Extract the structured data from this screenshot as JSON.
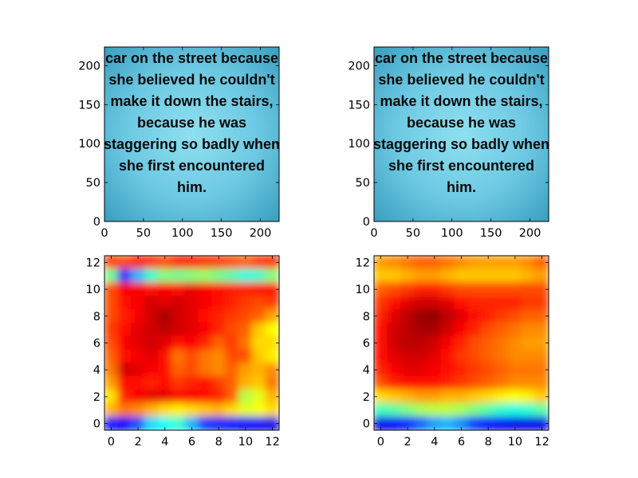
{
  "chart_data": [
    {
      "type": "image",
      "panel": "top-left",
      "xlim": [
        0,
        224
      ],
      "ylim": [
        224,
        0
      ],
      "x_ticks": [
        "0",
        "50",
        "100",
        "150",
        "200"
      ],
      "y_ticks": [
        "0",
        "50",
        "100",
        "150",
        "200"
      ],
      "x_tick_values": [
        0,
        50,
        100,
        150,
        200
      ],
      "y_tick_values": [
        0,
        50,
        100,
        150,
        200
      ],
      "image_text_lines": [
        "car on the street because",
        "she believed he couldn't",
        "make it down the stairs,",
        "because he was",
        "staggering so badly when",
        "she first encountered",
        "him."
      ],
      "background_colors": [
        "#8fe0f0",
        "#3a9fbf"
      ]
    },
    {
      "type": "image",
      "panel": "top-right",
      "xlim": [
        0,
        224
      ],
      "ylim": [
        224,
        0
      ],
      "x_ticks": [
        "0",
        "50",
        "100",
        "150",
        "200"
      ],
      "y_ticks": [
        "0",
        "50",
        "100",
        "150",
        "200"
      ],
      "x_tick_values": [
        0,
        50,
        100,
        150,
        200
      ],
      "y_tick_values": [
        0,
        50,
        100,
        150,
        200
      ],
      "image_text_lines": [
        "car on the street because",
        "she believed he couldn't",
        "make it down the stairs,",
        "because he was",
        "staggering so badly when",
        "she first encountered",
        "him."
      ],
      "bounding_box": {
        "x0": 4,
        "y0": 4,
        "x1": 220,
        "y1": 204,
        "color": "#c8b400"
      }
    },
    {
      "type": "heatmap",
      "panel": "bottom-left",
      "colormap": "jet",
      "xlim": [
        -0.5,
        12.5
      ],
      "ylim": [
        12.5,
        -0.5
      ],
      "x_ticks": [
        "0",
        "2",
        "4",
        "6",
        "8",
        "10",
        "12"
      ],
      "y_ticks": [
        "0",
        "2",
        "4",
        "6",
        "8",
        "10",
        "12"
      ],
      "x_tick_values": [
        0,
        2,
        4,
        6,
        8,
        10,
        12
      ],
      "y_tick_values": [
        0,
        2,
        4,
        6,
        8,
        10,
        12
      ],
      "z": [
        [
          0.82,
          0.8,
          0.85,
          0.83,
          0.8,
          0.85,
          0.85,
          0.83,
          0.82,
          0.8,
          0.78,
          0.82,
          0.83
        ],
        [
          0.48,
          0.18,
          0.3,
          0.42,
          0.5,
          0.48,
          0.5,
          0.52,
          0.48,
          0.45,
          0.4,
          0.42,
          0.5
        ],
        [
          0.8,
          0.88,
          0.88,
          0.86,
          0.88,
          0.86,
          0.9,
          0.88,
          0.86,
          0.85,
          0.84,
          0.86,
          0.86
        ],
        [
          0.8,
          0.86,
          0.88,
          0.92,
          0.9,
          0.92,
          0.9,
          0.88,
          0.86,
          0.84,
          0.82,
          0.8,
          0.82
        ],
        [
          0.8,
          0.85,
          0.88,
          0.92,
          0.96,
          0.92,
          0.9,
          0.86,
          0.84,
          0.82,
          0.8,
          0.78,
          0.72
        ],
        [
          0.82,
          0.86,
          0.9,
          0.92,
          0.94,
          0.92,
          0.9,
          0.88,
          0.84,
          0.8,
          0.78,
          0.68,
          0.62
        ],
        [
          0.8,
          0.88,
          0.9,
          0.92,
          0.9,
          0.86,
          0.88,
          0.84,
          0.78,
          0.82,
          0.76,
          0.66,
          0.66
        ],
        [
          0.78,
          0.86,
          0.88,
          0.9,
          0.86,
          0.76,
          0.8,
          0.76,
          0.74,
          0.8,
          0.8,
          0.68,
          0.64
        ],
        [
          0.76,
          0.92,
          0.9,
          0.88,
          0.86,
          0.78,
          0.8,
          0.76,
          0.74,
          0.78,
          0.72,
          0.7,
          0.74
        ],
        [
          0.72,
          0.86,
          0.86,
          0.84,
          0.86,
          0.82,
          0.84,
          0.86,
          0.82,
          0.78,
          0.7,
          0.68,
          0.76
        ],
        [
          0.65,
          0.84,
          0.88,
          0.9,
          0.9,
          0.88,
          0.88,
          0.86,
          0.84,
          0.78,
          0.55,
          0.6,
          0.7
        ],
        [
          0.7,
          0.76,
          0.74,
          0.7,
          0.66,
          0.64,
          0.66,
          0.68,
          0.7,
          0.66,
          0.6,
          0.62,
          0.66
        ],
        [
          0.14,
          0.12,
          0.2,
          0.34,
          0.38,
          0.42,
          0.3,
          0.18,
          0.16,
          0.14,
          0.12,
          0.12,
          0.1
        ]
      ],
      "bounding_box": {
        "x0": 0,
        "y0": 0,
        "x1": 12,
        "y1": 11,
        "color": "#ffffff"
      }
    },
    {
      "type": "heatmap",
      "panel": "bottom-right",
      "colormap": "jet",
      "xlim": [
        -0.5,
        12.5
      ],
      "ylim": [
        12.5,
        -0.5
      ],
      "x_ticks": [
        "0",
        "2",
        "4",
        "6",
        "8",
        "10",
        "12"
      ],
      "y_ticks": [
        "0",
        "2",
        "4",
        "6",
        "8",
        "10",
        "12"
      ],
      "x_tick_values": [
        0,
        2,
        4,
        6,
        8,
        10,
        12
      ],
      "y_tick_values": [
        0,
        2,
        4,
        6,
        8,
        10,
        12
      ],
      "z": [
        [
          0.72,
          0.74,
          0.76,
          0.78,
          0.78,
          0.76,
          0.74,
          0.72,
          0.72,
          0.72,
          0.72,
          0.74,
          0.78
        ],
        [
          0.68,
          0.68,
          0.7,
          0.72,
          0.72,
          0.7,
          0.68,
          0.68,
          0.68,
          0.68,
          0.68,
          0.7,
          0.72
        ],
        [
          0.78,
          0.8,
          0.82,
          0.84,
          0.84,
          0.82,
          0.8,
          0.8,
          0.8,
          0.8,
          0.8,
          0.8,
          0.8
        ],
        [
          0.82,
          0.86,
          0.9,
          0.92,
          0.92,
          0.9,
          0.86,
          0.84,
          0.84,
          0.84,
          0.84,
          0.82,
          0.82
        ],
        [
          0.84,
          0.9,
          0.94,
          0.97,
          0.98,
          0.94,
          0.9,
          0.86,
          0.84,
          0.82,
          0.8,
          0.78,
          0.78
        ],
        [
          0.86,
          0.92,
          0.94,
          0.96,
          0.96,
          0.92,
          0.88,
          0.84,
          0.8,
          0.78,
          0.76,
          0.74,
          0.74
        ],
        [
          0.86,
          0.92,
          0.94,
          0.94,
          0.92,
          0.88,
          0.84,
          0.8,
          0.78,
          0.76,
          0.74,
          0.72,
          0.72
        ],
        [
          0.86,
          0.9,
          0.92,
          0.92,
          0.9,
          0.86,
          0.82,
          0.8,
          0.78,
          0.76,
          0.74,
          0.74,
          0.74
        ],
        [
          0.84,
          0.88,
          0.9,
          0.9,
          0.88,
          0.86,
          0.84,
          0.82,
          0.8,
          0.78,
          0.76,
          0.76,
          0.76
        ],
        [
          0.8,
          0.84,
          0.86,
          0.86,
          0.86,
          0.84,
          0.82,
          0.8,
          0.78,
          0.76,
          0.74,
          0.74,
          0.74
        ],
        [
          0.66,
          0.68,
          0.7,
          0.72,
          0.72,
          0.7,
          0.7,
          0.68,
          0.66,
          0.64,
          0.62,
          0.64,
          0.68
        ],
        [
          0.44,
          0.46,
          0.5,
          0.54,
          0.56,
          0.56,
          0.54,
          0.5,
          0.46,
          0.42,
          0.4,
          0.42,
          0.46
        ],
        [
          0.1,
          0.12,
          0.16,
          0.22,
          0.28,
          0.3,
          0.26,
          0.18,
          0.14,
          0.12,
          0.1,
          0.1,
          0.1
        ]
      ],
      "bounding_box": {
        "x0": 0,
        "y0": 0,
        "x1": 12,
        "y1": 11,
        "color": "#ffffff"
      }
    }
  ]
}
